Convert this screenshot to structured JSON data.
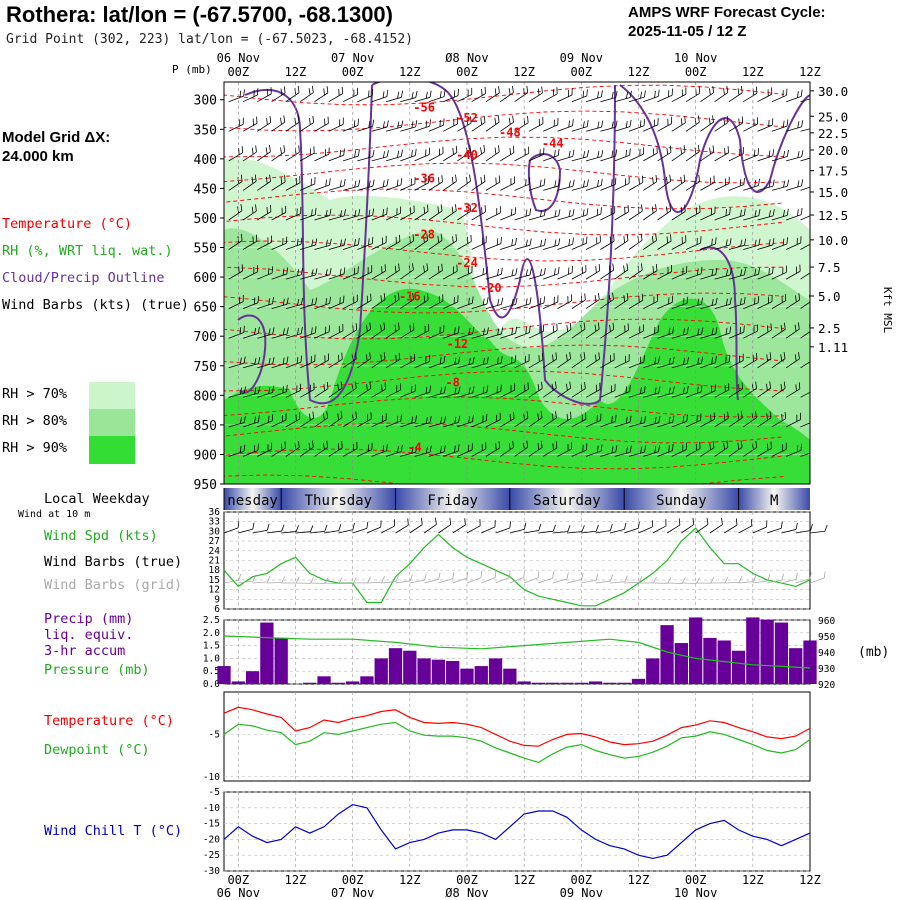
{
  "header": {
    "title": "Rothera:  lat/lon = (-67.5700, -68.1300)",
    "grid_point": "Grid Point (302, 223) lat/lon = (-67.5023, -68.4152)",
    "forecast_title": "AMPS WRF Forecast Cycle:",
    "forecast_cycle": "2025-11-05 / 12  Z"
  },
  "model_grid": {
    "line1": "Model Grid ΔX:",
    "line2": " 24.000 km"
  },
  "legend": {
    "temperature": "Temperature (°C)",
    "rh": "RH (%, WRT liq. wat.)",
    "cloud": "Cloud/Precip Outline",
    "wind_barbs": "Wind Barbs (kts) (true)",
    "rh70": "RH > 70%",
    "rh80": "RH > 80%",
    "rh90": "RH > 90%",
    "local_weekday": "Local Weekday",
    "wind_10m": "Wind at 10 m",
    "wind_spd": "Wind Spd (kts)",
    "wind_barbs_true": "Wind Barbs (true)",
    "wind_barbs_grid": "Wind Barbs (grid)",
    "precip1": "Precip (mm)",
    "precip2": "liq. equiv.",
    "precip3": "3-hr accum",
    "pressure": "Pressure (mb)",
    "temp2": "Temperature (°C)",
    "dewpoint": "Dewpoint (°C)",
    "windchill": "Wind Chill T (°C)"
  },
  "colors": {
    "temperature": "#ff0000",
    "rh": "#22bb22",
    "cloud": "#663399",
    "rh70": "#ccf5cc",
    "rh80": "#99e699",
    "rh90": "#33dd33",
    "precip": "#660099",
    "windchill": "#0000cc",
    "grid_wind": "#aaaaaa"
  },
  "chart_data": [
    {
      "type": "heatmap",
      "name": "vertical-cross-section",
      "pressure_label": "P (mb)",
      "pressure_levels": [
        300,
        350,
        400,
        450,
        500,
        550,
        600,
        650,
        700,
        750,
        800,
        850,
        900,
        950
      ],
      "height_label": "Kft MSL",
      "height_ticks": [
        {
          "label": "30.0",
          "p": 285
        },
        {
          "label": "25.0",
          "p": 328
        },
        {
          "label": "22.5",
          "p": 356
        },
        {
          "label": "20.0",
          "p": 385
        },
        {
          "label": "17.5",
          "p": 420
        },
        {
          "label": "15.0",
          "p": 456
        },
        {
          "label": "12.5",
          "p": 495
        },
        {
          "label": "10.0",
          "p": 537
        },
        {
          "label": "7.5",
          "p": 583
        },
        {
          "label": "5.0",
          "p": 632
        },
        {
          "label": "2.5",
          "p": 686
        },
        {
          "label": "1.11",
          "p": 718
        }
      ],
      "time_range_hours": [
        -3,
        120
      ],
      "time_ticks_top": [
        {
          "h": 0,
          "hour": "00Z",
          "date": "06 Nov"
        },
        {
          "h": 12,
          "hour": "12Z",
          "date": ""
        },
        {
          "h": 24,
          "hour": "00Z",
          "date": "07 Nov"
        },
        {
          "h": 36,
          "hour": "12Z",
          "date": ""
        },
        {
          "h": 48,
          "hour": "00Z",
          "date": "Ø8 Nov"
        },
        {
          "h": 60,
          "hour": "12Z",
          "date": ""
        },
        {
          "h": 72,
          "hour": "00Z",
          "date": "09 Nov"
        },
        {
          "h": 84,
          "hour": "12Z",
          "date": ""
        },
        {
          "h": 96,
          "hour": "00Z",
          "date": "10 Nov"
        },
        {
          "h": 108,
          "hour": "12Z",
          "date": ""
        },
        {
          "h": 120,
          "hour": "12Z",
          "date": ""
        }
      ],
      "temperature_labels": [
        {
          "text": "-56",
          "h": 39,
          "p": 320
        },
        {
          "text": "-52",
          "h": 48,
          "p": 338
        },
        {
          "text": "-48",
          "h": 57,
          "p": 362
        },
        {
          "text": "-44",
          "h": 66,
          "p": 381
        },
        {
          "text": "-40",
          "h": 48,
          "p": 400
        },
        {
          "text": "-36",
          "h": 39,
          "p": 440
        },
        {
          "text": "-32",
          "h": 48,
          "p": 490
        },
        {
          "text": "-28",
          "h": 39,
          "p": 535
        },
        {
          "text": "-24",
          "h": 48,
          "p": 583
        },
        {
          "text": "-20",
          "h": 53,
          "p": 625
        },
        {
          "text": "-16",
          "h": 36,
          "p": 640
        },
        {
          "text": "-12",
          "h": 46,
          "p": 720
        },
        {
          "text": "-8",
          "h": 45,
          "p": 785
        },
        {
          "text": "-4",
          "h": 37,
          "p": 895
        }
      ]
    },
    {
      "type": "line",
      "name": "wind-speed",
      "y_ticks": [
        6,
        9,
        12,
        15,
        18,
        21,
        24,
        27,
        30,
        33,
        36
      ],
      "ylim": [
        6,
        36
      ],
      "x": [
        -3,
        0,
        3,
        6,
        9,
        12,
        15,
        18,
        21,
        24,
        27,
        30,
        33,
        36,
        39,
        42,
        45,
        48,
        51,
        54,
        57,
        60,
        63,
        66,
        69,
        72,
        75,
        78,
        81,
        84,
        87,
        90,
        93,
        96,
        99,
        102,
        105,
        108,
        111,
        114,
        117,
        120
      ],
      "values": [
        18,
        13,
        16,
        17,
        20,
        22,
        17,
        15,
        14,
        14,
        8,
        8,
        16,
        20,
        25,
        29,
        25,
        22,
        20,
        18,
        16,
        12,
        10,
        9,
        8,
        7,
        7,
        9,
        11,
        14,
        17,
        21,
        27,
        31,
        25,
        20,
        20,
        17,
        15,
        14,
        13,
        15
      ]
    },
    {
      "type": "bar",
      "name": "precip",
      "ylim": [
        0,
        2.5
      ],
      "y_ticks": [
        0.0,
        0.5,
        1.0,
        1.5,
        2.0,
        2.5
      ],
      "x": [
        -3,
        0,
        3,
        6,
        9,
        12,
        15,
        18,
        21,
        24,
        27,
        30,
        33,
        36,
        39,
        42,
        45,
        48,
        51,
        54,
        57,
        60,
        63,
        66,
        69,
        72,
        75,
        78,
        81,
        84,
        87,
        90,
        93,
        96,
        99,
        102,
        105,
        108,
        111,
        114,
        117,
        120
      ],
      "values": [
        0.7,
        0.1,
        0.5,
        2.4,
        1.8,
        0.0,
        0.05,
        0.3,
        0.05,
        0.1,
        0.3,
        1.0,
        1.4,
        1.3,
        1.0,
        0.95,
        0.9,
        0.6,
        0.7,
        1.0,
        0.6,
        0.1,
        0.05,
        0.05,
        0.05,
        0.05,
        0.1,
        0.05,
        0.05,
        0.2,
        1.0,
        2.3,
        1.6,
        2.6,
        1.8,
        1.7,
        1.3,
        2.6,
        2.5,
        2.4,
        1.4,
        1.7
      ]
    },
    {
      "type": "line",
      "name": "pressure",
      "ylim": [
        920,
        960
      ],
      "y_ticks": [
        920,
        930,
        940,
        950,
        960
      ],
      "x": [
        -3,
        6,
        15,
        24,
        33,
        42,
        51,
        60,
        69,
        78,
        84,
        90,
        96,
        102,
        108,
        114,
        120
      ],
      "values": [
        950,
        949,
        948,
        948,
        946,
        943,
        942,
        944,
        946,
        948,
        946,
        940,
        936,
        934,
        932,
        931,
        930
      ]
    },
    {
      "type": "line",
      "name": "temperature-dewpoint",
      "ylim": [
        -10,
        0
      ],
      "y_ticks": [
        -5,
        -10
      ],
      "x": [
        -3,
        0,
        3,
        6,
        9,
        12,
        15,
        18,
        21,
        24,
        27,
        30,
        33,
        36,
        39,
        42,
        45,
        48,
        51,
        54,
        57,
        60,
        63,
        66,
        69,
        72,
        75,
        78,
        81,
        84,
        87,
        90,
        93,
        96,
        99,
        102,
        105,
        108,
        111,
        114,
        117,
        120
      ],
      "series": [
        {
          "name": "Temperature",
          "values": [
            -2.5,
            -1.8,
            -2.1,
            -2.6,
            -3.0,
            -4.6,
            -4.2,
            -3.3,
            -3.6,
            -3.1,
            -2.8,
            -2.3,
            -2.1,
            -3.0,
            -3.6,
            -3.7,
            -3.6,
            -3.8,
            -4.2,
            -5.0,
            -5.8,
            -6.3,
            -6.4,
            -5.6,
            -5.0,
            -4.9,
            -5.3,
            -5.9,
            -6.2,
            -6.1,
            -5.8,
            -5.1,
            -4.2,
            -3.9,
            -3.4,
            -3.6,
            -4.2,
            -4.7,
            -5.3,
            -5.5,
            -5.2,
            -4.3
          ]
        },
        {
          "name": "Dewpoint",
          "values": [
            -5.0,
            -3.8,
            -4.0,
            -4.5,
            -4.8,
            -6.2,
            -5.8,
            -4.8,
            -5.0,
            -4.6,
            -4.2,
            -3.8,
            -3.6,
            -4.6,
            -5.1,
            -5.2,
            -5.2,
            -5.4,
            -5.8,
            -6.6,
            -7.2,
            -7.8,
            -8.3,
            -7.3,
            -6.5,
            -6.2,
            -6.9,
            -7.4,
            -7.8,
            -7.6,
            -7.1,
            -6.4,
            -5.4,
            -5.2,
            -4.7,
            -5.0,
            -5.6,
            -6.2,
            -6.9,
            -7.2,
            -6.8,
            -5.6
          ]
        }
      ]
    },
    {
      "type": "line",
      "name": "wind-chill",
      "ylim": [
        -30,
        -5
      ],
      "y_ticks": [
        -5,
        -10,
        -15,
        -20,
        -25,
        -30
      ],
      "x": [
        -3,
        0,
        3,
        6,
        9,
        12,
        15,
        18,
        21,
        24,
        27,
        30,
        33,
        36,
        39,
        42,
        45,
        48,
        51,
        54,
        57,
        60,
        63,
        66,
        69,
        72,
        75,
        78,
        81,
        84,
        87,
        90,
        93,
        96,
        99,
        102,
        105,
        108,
        111,
        114,
        117,
        120
      ],
      "values": [
        -20,
        -16,
        -19,
        -21,
        -20,
        -16,
        -18,
        -16,
        -12,
        -9,
        -10,
        -17,
        -23,
        -21,
        -20,
        -18,
        -17,
        -17,
        -18,
        -20,
        -16,
        -12,
        -11,
        -11,
        -13,
        -17,
        -20,
        -22,
        -23,
        -25,
        -26,
        -25,
        -21,
        -17,
        -15,
        -14,
        -17,
        -19,
        -20,
        -22,
        -20,
        -18
      ]
    }
  ],
  "weekdays": [
    {
      "label": "nesday",
      "h_start": -3,
      "h_end": 9
    },
    {
      "label": "Thursday",
      "h_start": 9,
      "h_end": 33
    },
    {
      "label": "Friday",
      "h_start": 33,
      "h_end": 57
    },
    {
      "label": "Saturday",
      "h_start": 57,
      "h_end": 81
    },
    {
      "label": "Sunday",
      "h_start": 81,
      "h_end": 105
    },
    {
      "label": "M",
      "h_start": 105,
      "h_end": 120
    }
  ],
  "bottom_axis": {
    "ticks": [
      {
        "h": 0,
        "hour": "00Z",
        "date": "06 Nov"
      },
      {
        "h": 12,
        "hour": "12Z",
        "date": ""
      },
      {
        "h": 24,
        "hour": "00Z",
        "date": "07 Nov"
      },
      {
        "h": 36,
        "hour": "12Z",
        "date": ""
      },
      {
        "h": 48,
        "hour": "00Z",
        "date": "Ø8 Nov"
      },
      {
        "h": 60,
        "hour": "12Z",
        "date": ""
      },
      {
        "h": 72,
        "hour": "00Z",
        "date": "09 Nov"
      },
      {
        "h": 84,
        "hour": "12Z",
        "date": ""
      },
      {
        "h": 96,
        "hour": "00Z",
        "date": "10 Nov"
      },
      {
        "h": 108,
        "hour": "12Z",
        "date": ""
      }
    ],
    "last_tick": "12Z"
  },
  "pressure_unit": "(mb)",
  "wind_barbs_sample": "wind-barbs"
}
